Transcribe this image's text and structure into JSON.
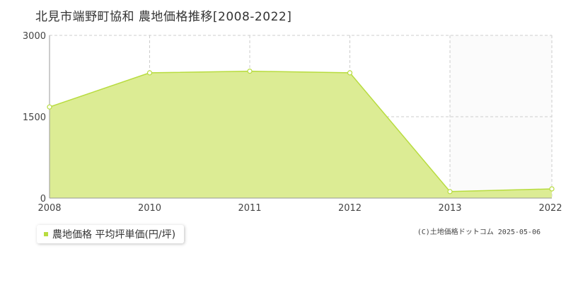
{
  "chart_data": {
    "type": "area",
    "title": "北見市端野町協和 農地価格推移[2008-2022]",
    "categories": [
      "2008",
      "2010",
      "2011",
      "2012",
      "2013",
      "2022"
    ],
    "series": [
      {
        "name": "農地価格 平均坪単価(円/坪)",
        "values": [
          1680,
          2310,
          2340,
          2310,
          120,
          170
        ]
      }
    ],
    "yticks": [
      "0",
      "1500",
      "3000"
    ],
    "ylim": [
      0,
      3000
    ],
    "grid": true,
    "legend_position": "bottom-left"
  },
  "colors": {
    "fill": "#dcec94",
    "line": "#b8dc40",
    "axis": "#999999",
    "grid": "#cccccc",
    "future": "#fbfbfb",
    "point_fill": "#ffffff",
    "legend_swatch": "#b8dc40"
  },
  "copyright": "(C)土地価格ドットコム 2025-05-06"
}
